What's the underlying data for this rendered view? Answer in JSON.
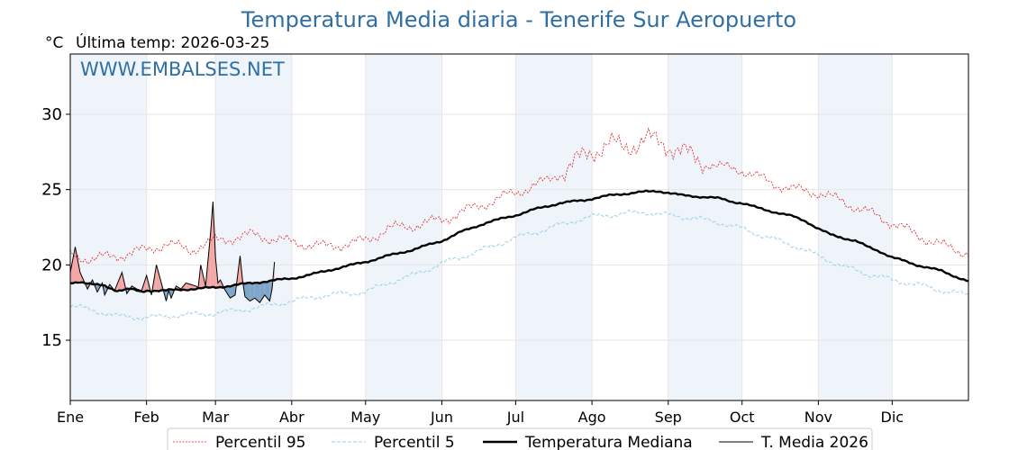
{
  "chart_data": {
    "type": "line",
    "title": "Temperatura Media diaria - Tenerife Sur Aeropuerto",
    "ylabel": "°C",
    "last_temp_label": "Última temp: 2026-03-25",
    "watermark": "WWW.EMBALSES.NET",
    "ylim": [
      11,
      34
    ],
    "yticks": [
      15,
      20,
      25,
      30
    ],
    "xlim": [
      1,
      366
    ],
    "months": [
      {
        "label": "Ene",
        "day": 1
      },
      {
        "label": "Feb",
        "day": 32
      },
      {
        "label": "Mar",
        "day": 60
      },
      {
        "label": "Abr",
        "day": 91
      },
      {
        "label": "May",
        "day": 121
      },
      {
        "label": "Jun",
        "day": 152
      },
      {
        "label": "Jul",
        "day": 182
      },
      {
        "label": "Ago",
        "day": 213
      },
      {
        "label": "Sep",
        "day": 244
      },
      {
        "label": "Oct",
        "day": 274
      },
      {
        "label": "Nov",
        "day": 305
      },
      {
        "label": "Dic",
        "day": 335
      }
    ],
    "series": [
      {
        "name": "Percentil 95",
        "color": "#e41a1c",
        "x": [
          1,
          10,
          20,
          32,
          40,
          50,
          60,
          75,
          91,
          105,
          121,
          130,
          140,
          152,
          165,
          182,
          195,
          205,
          213,
          220,
          225,
          235,
          244,
          255,
          265,
          274,
          285,
          295,
          305,
          315,
          325,
          335,
          345,
          355,
          366
        ],
        "y": [
          20.6,
          20.4,
          20.6,
          21.0,
          21.4,
          21.0,
          21.6,
          22.0,
          21.5,
          21.2,
          21.6,
          22.4,
          22.6,
          23.0,
          23.8,
          24.8,
          25.6,
          26.6,
          27.6,
          28.0,
          27.8,
          28.3,
          28.0,
          27.0,
          26.5,
          26.3,
          25.5,
          25.0,
          24.8,
          24.2,
          23.5,
          22.8,
          22.0,
          21.3,
          20.8
        ]
      },
      {
        "name": "Percentil 5",
        "color": "#9ed0e6",
        "x": [
          1,
          10,
          20,
          32,
          40,
          50,
          60,
          75,
          91,
          105,
          121,
          130,
          140,
          152,
          165,
          182,
          195,
          205,
          213,
          225,
          235,
          244,
          255,
          265,
          274,
          285,
          295,
          305,
          315,
          325,
          335,
          345,
          355,
          366
        ],
        "y": [
          17.3,
          17.0,
          16.6,
          16.5,
          16.6,
          16.7,
          16.8,
          17.1,
          17.6,
          18.0,
          18.2,
          18.8,
          19.3,
          20.1,
          20.8,
          21.8,
          22.4,
          22.9,
          23.2,
          23.4,
          23.5,
          23.3,
          23.1,
          22.8,
          22.4,
          21.8,
          21.3,
          20.6,
          19.9,
          19.4,
          19.0,
          18.7,
          18.3,
          18.0
        ]
      },
      {
        "name": "Temperatura Mediana",
        "color": "#000000",
        "x": [
          1,
          5,
          10,
          15,
          20,
          25,
          30,
          32,
          40,
          50,
          60,
          70,
          80,
          91,
          100,
          110,
          121,
          130,
          140,
          152,
          160,
          170,
          182,
          190,
          200,
          210,
          213,
          220,
          230,
          240,
          244,
          250,
          260,
          265,
          270,
          274,
          280,
          285,
          295,
          300,
          305,
          310,
          320,
          325,
          330,
          335,
          345,
          355,
          366
        ],
        "y": [
          18.8,
          18.9,
          18.7,
          18.6,
          18.3,
          18.4,
          18.2,
          18.3,
          18.3,
          18.4,
          18.5,
          18.7,
          18.9,
          19.1,
          19.4,
          19.8,
          20.2,
          20.6,
          21.0,
          21.6,
          22.2,
          22.8,
          23.3,
          23.7,
          24.1,
          24.3,
          24.4,
          24.6,
          24.8,
          24.9,
          24.8,
          24.6,
          24.5,
          24.4,
          24.2,
          24.1,
          23.8,
          23.6,
          23.2,
          22.9,
          22.4,
          22.0,
          21.6,
          21.2,
          20.9,
          20.5,
          20.0,
          19.6,
          18.9
        ]
      },
      {
        "name": "T. Media 2026",
        "color": "#000000",
        "x": [
          1,
          3,
          5,
          8,
          10,
          12,
          14,
          15,
          17,
          19,
          22,
          24,
          26,
          28,
          30,
          32,
          34,
          36,
          38,
          40,
          41,
          42,
          44,
          46,
          48,
          50,
          52,
          53,
          54,
          56,
          58,
          59,
          60,
          61,
          62,
          64,
          66,
          68,
          70,
          71,
          72,
          74,
          76,
          78,
          80,
          82,
          83,
          84
        ],
        "y": [
          19.5,
          21.2,
          19.5,
          18.4,
          19.0,
          18.2,
          18.8,
          18.0,
          18.7,
          18.3,
          19.5,
          18.1,
          18.6,
          18.4,
          18.3,
          19.3,
          18.0,
          20.0,
          18.8,
          17.6,
          18.3,
          17.8,
          18.6,
          18.4,
          18.8,
          18.7,
          18.6,
          18.5,
          20.0,
          18.6,
          22.1,
          24.2,
          20.5,
          18.8,
          19.0,
          18.3,
          17.8,
          18.0,
          20.6,
          19.0,
          17.9,
          17.6,
          17.8,
          17.5,
          18.0,
          17.6,
          18.4,
          20.2
        ]
      }
    ],
    "fill_above_color": "#f4a6a6",
    "fill_below_color": "#7fa6c9",
    "shaded_months": [
      "Ene",
      "Mar",
      "May",
      "Jul",
      "Sep",
      "Nov"
    ],
    "shade_color": "#eef4fa",
    "grid": true,
    "legend_position": "bottom-center"
  }
}
